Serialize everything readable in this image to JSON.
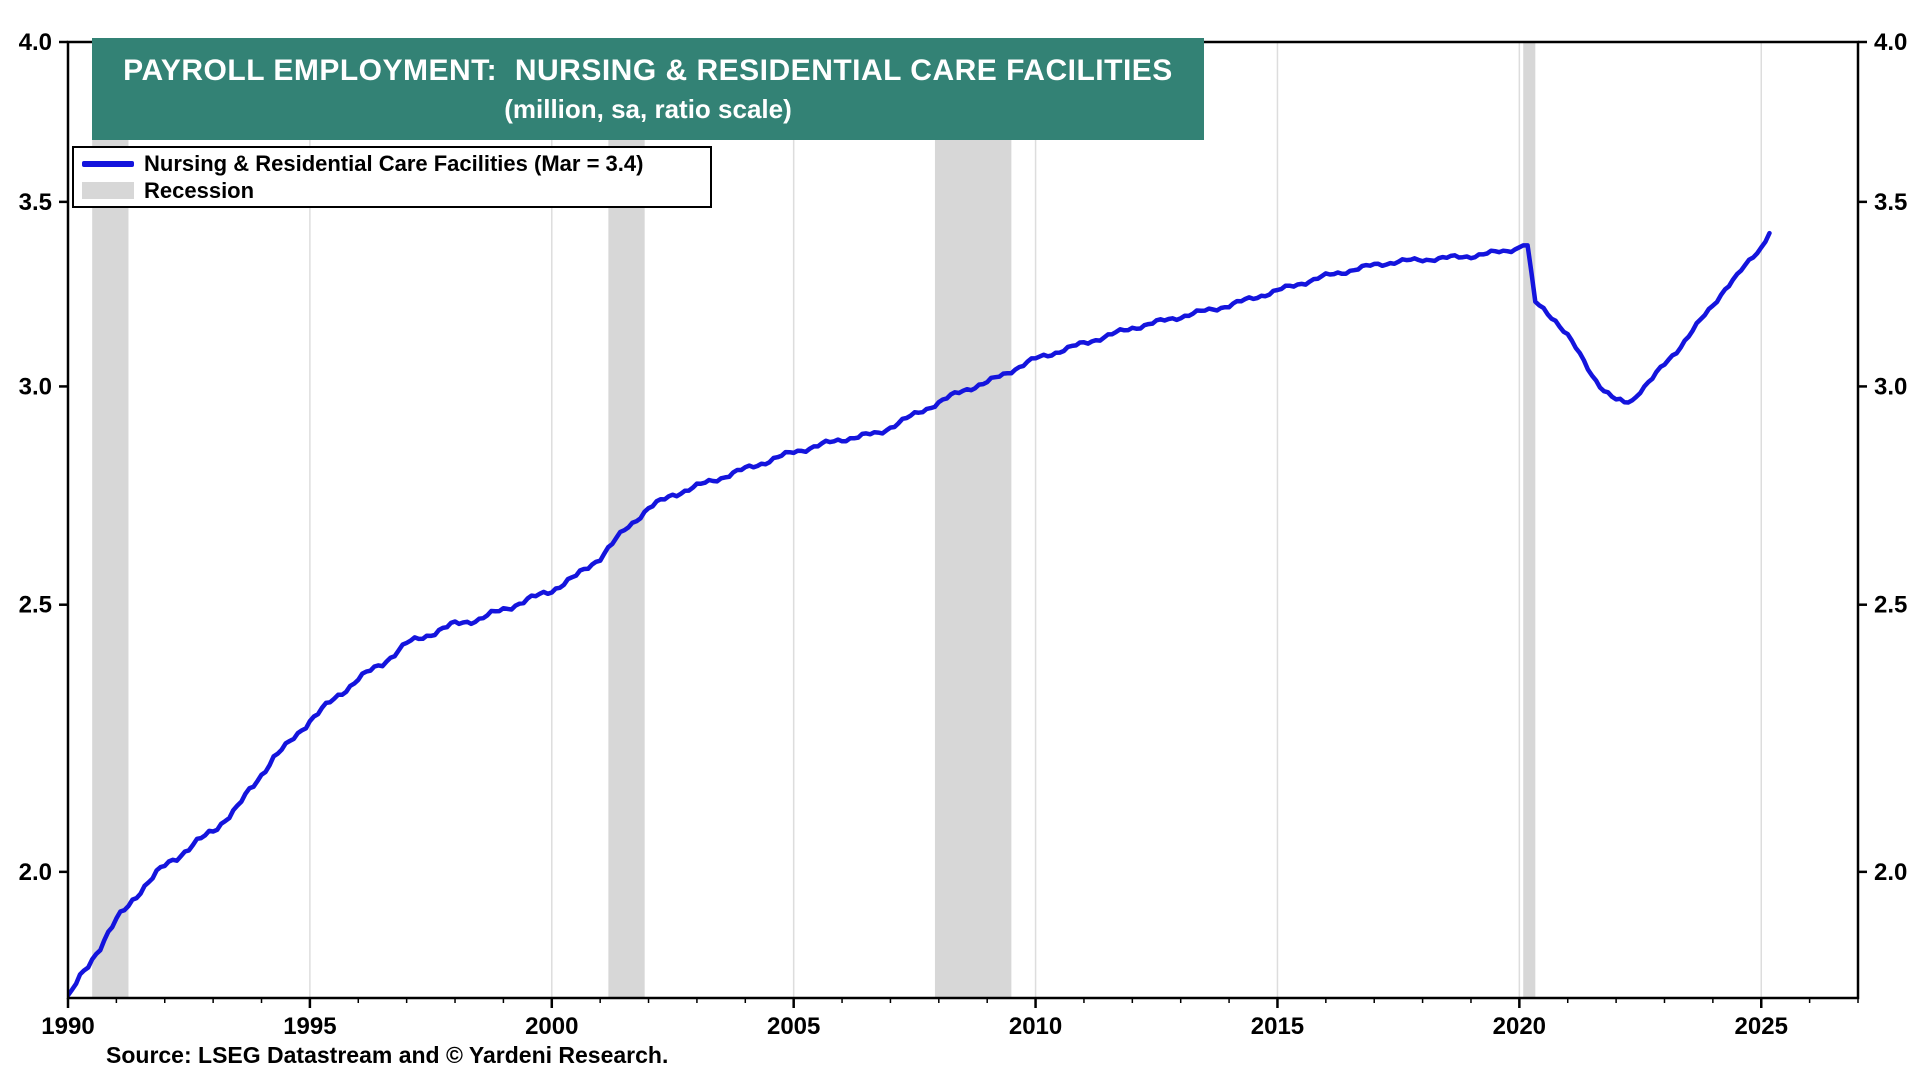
{
  "colors": {
    "banner": "#338275",
    "series_line": "#1414dd",
    "recession_fill": "#d7d7d7",
    "gridline": "#dddddd",
    "frame": "#000000"
  },
  "banner": {
    "title": "PAYROLL EMPLOYMENT:  NURSING & RESIDENTIAL CARE FACILITIES",
    "subtitle": "(million, sa, ratio scale)"
  },
  "legend": {
    "series_label": "Nursing & Residential Care Facilities (Mar = 3.4)",
    "recession_label": "Recession"
  },
  "source": "Source: LSEG Datastream and © Yardeni Research.",
  "chart_data": {
    "type": "line",
    "title": "PAYROLL EMPLOYMENT: NURSING & RESIDENTIAL CARE FACILITIES",
    "subtitle": "(million, sa, ratio scale)",
    "xlabel": "",
    "ylabel": "million, sa, ratio scale",
    "y_scale": "log",
    "ylim": [
      1.8,
      4.0
    ],
    "xlim": [
      1990,
      2027
    ],
    "y_ticks": [
      2.0,
      2.5,
      3.0,
      3.5,
      4.0
    ],
    "x_ticks": [
      1990,
      1995,
      2000,
      2005,
      2010,
      2015,
      2020,
      2025
    ],
    "grid": "vertical-at-x-ticks",
    "legend_position": "top-left",
    "recessions": [
      [
        1990.5,
        1991.25
      ],
      [
        2001.17,
        2001.92
      ],
      [
        2007.92,
        2009.5
      ],
      [
        2020.08,
        2020.33
      ]
    ],
    "series": [
      {
        "name": "Nursing & Residential Care Facilities (Mar = 3.4)",
        "latest_label": "Mar = 3.4",
        "points": [
          [
            1990.0,
            1.8
          ],
          [
            1990.25,
            1.83
          ],
          [
            1990.5,
            1.86
          ],
          [
            1990.75,
            1.89
          ],
          [
            1991.0,
            1.92
          ],
          [
            1991.25,
            1.945
          ],
          [
            1991.5,
            1.97
          ],
          [
            1991.75,
            1.99
          ],
          [
            1992.0,
            2.01
          ],
          [
            1992.25,
            2.025
          ],
          [
            1992.5,
            2.04
          ],
          [
            1992.75,
            2.055
          ],
          [
            1993.0,
            2.07
          ],
          [
            1993.25,
            2.09
          ],
          [
            1993.5,
            2.11
          ],
          [
            1993.75,
            2.14
          ],
          [
            1994.0,
            2.17
          ],
          [
            1994.25,
            2.2
          ],
          [
            1994.5,
            2.22
          ],
          [
            1994.75,
            2.245
          ],
          [
            1995.0,
            2.27
          ],
          [
            1995.25,
            2.29
          ],
          [
            1995.5,
            2.31
          ],
          [
            1995.75,
            2.33
          ],
          [
            1996.0,
            2.35
          ],
          [
            1996.25,
            2.365
          ],
          [
            1996.5,
            2.38
          ],
          [
            1996.75,
            2.4
          ],
          [
            1997.0,
            2.42
          ],
          [
            1997.25,
            2.43
          ],
          [
            1997.5,
            2.44
          ],
          [
            1997.75,
            2.45
          ],
          [
            1998.0,
            2.46
          ],
          [
            1998.25,
            2.465
          ],
          [
            1998.5,
            2.47
          ],
          [
            1998.75,
            2.48
          ],
          [
            1999.0,
            2.49
          ],
          [
            1999.5,
            2.51
          ],
          [
            2000.0,
            2.53
          ],
          [
            2000.5,
            2.56
          ],
          [
            2001.0,
            2.6
          ],
          [
            2001.25,
            2.63
          ],
          [
            2001.5,
            2.66
          ],
          [
            2001.75,
            2.685
          ],
          [
            2002.0,
            2.71
          ],
          [
            2002.25,
            2.725
          ],
          [
            2002.5,
            2.74
          ],
          [
            2002.75,
            2.75
          ],
          [
            2003.0,
            2.76
          ],
          [
            2003.5,
            2.78
          ],
          [
            2004.0,
            2.8
          ],
          [
            2004.5,
            2.82
          ],
          [
            2005.0,
            2.84
          ],
          [
            2005.5,
            2.855
          ],
          [
            2006.0,
            2.87
          ],
          [
            2006.25,
            2.875
          ],
          [
            2006.5,
            2.88
          ],
          [
            2006.75,
            2.885
          ],
          [
            2007.0,
            2.9
          ],
          [
            2007.25,
            2.915
          ],
          [
            2007.5,
            2.93
          ],
          [
            2007.75,
            2.945
          ],
          [
            2008.0,
            2.96
          ],
          [
            2008.25,
            2.975
          ],
          [
            2008.5,
            2.99
          ],
          [
            2008.75,
            3.0
          ],
          [
            2009.0,
            3.01
          ],
          [
            2009.5,
            3.04
          ],
          [
            2010.0,
            3.07
          ],
          [
            2010.5,
            3.09
          ],
          [
            2011.0,
            3.11
          ],
          [
            2011.5,
            3.13
          ],
          [
            2012.0,
            3.15
          ],
          [
            2012.5,
            3.165
          ],
          [
            2013.0,
            3.18
          ],
          [
            2013.5,
            3.195
          ],
          [
            2014.0,
            3.21
          ],
          [
            2014.5,
            3.23
          ],
          [
            2015.0,
            3.25
          ],
          [
            2015.5,
            3.27
          ],
          [
            2016.0,
            3.29
          ],
          [
            2016.5,
            3.305
          ],
          [
            2017.0,
            3.32
          ],
          [
            2017.5,
            3.33
          ],
          [
            2018.0,
            3.335
          ],
          [
            2018.5,
            3.34
          ],
          [
            2019.0,
            3.345
          ],
          [
            2019.5,
            3.355
          ],
          [
            2019.75,
            3.36
          ],
          [
            2020.0,
            3.37
          ],
          [
            2020.08,
            3.375
          ],
          [
            2020.17,
            3.375
          ],
          [
            2020.25,
            3.3
          ],
          [
            2020.33,
            3.22
          ],
          [
            2020.5,
            3.2
          ],
          [
            2020.75,
            3.17
          ],
          [
            2021.0,
            3.13
          ],
          [
            2021.25,
            3.08
          ],
          [
            2021.5,
            3.03
          ],
          [
            2021.75,
            2.99
          ],
          [
            2022.0,
            2.965
          ],
          [
            2022.17,
            2.96
          ],
          [
            2022.33,
            2.965
          ],
          [
            2022.5,
            2.99
          ],
          [
            2022.75,
            3.02
          ],
          [
            2023.0,
            3.055
          ],
          [
            2023.25,
            3.09
          ],
          [
            2023.5,
            3.13
          ],
          [
            2023.75,
            3.17
          ],
          [
            2024.0,
            3.21
          ],
          [
            2024.25,
            3.255
          ],
          [
            2024.5,
            3.29
          ],
          [
            2024.75,
            3.33
          ],
          [
            2025.0,
            3.37
          ],
          [
            2025.17,
            3.41
          ]
        ]
      }
    ]
  }
}
